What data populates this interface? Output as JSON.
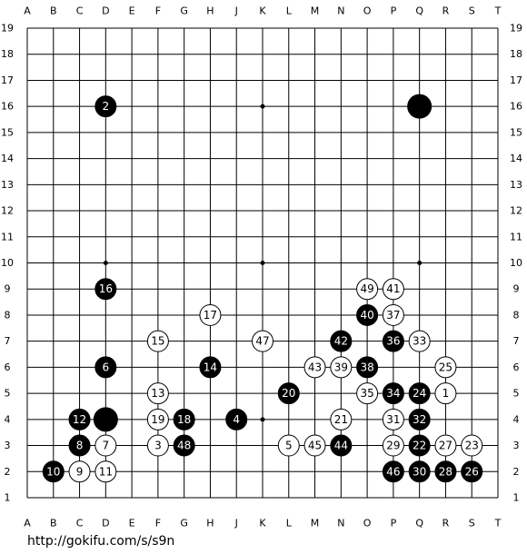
{
  "board": {
    "columns": [
      "A",
      "B",
      "C",
      "D",
      "E",
      "F",
      "G",
      "H",
      "J",
      "K",
      "L",
      "M",
      "N",
      "O",
      "P",
      "Q",
      "R",
      "S",
      "T"
    ],
    "rows": [
      19,
      18,
      17,
      16,
      15,
      14,
      13,
      12,
      11,
      10,
      9,
      8,
      7,
      6,
      5,
      4,
      3,
      2,
      1
    ],
    "star_points": [
      "D16",
      "K16",
      "Q16",
      "D10",
      "K10",
      "Q10",
      "D4",
      "K4",
      "Q4"
    ],
    "stones": [
      {
        "color": "black",
        "point": "D16",
        "move": 2
      },
      {
        "color": "black",
        "point": "Q16"
      },
      {
        "color": "black",
        "point": "D9",
        "move": 16
      },
      {
        "color": "black",
        "point": "D6",
        "move": 6
      },
      {
        "color": "black",
        "point": "H6",
        "move": 14
      },
      {
        "color": "black",
        "point": "D4"
      },
      {
        "color": "black",
        "point": "C4",
        "move": 12
      },
      {
        "color": "black",
        "point": "C3",
        "move": 8
      },
      {
        "color": "black",
        "point": "B2",
        "move": 10
      },
      {
        "color": "black",
        "point": "G4",
        "move": 18
      },
      {
        "color": "black",
        "point": "G3",
        "move": 48
      },
      {
        "color": "black",
        "point": "J4",
        "move": 4
      },
      {
        "color": "black",
        "point": "L5",
        "move": 20
      },
      {
        "color": "black",
        "point": "N7",
        "move": 42
      },
      {
        "color": "black",
        "point": "O8",
        "move": 40
      },
      {
        "color": "black",
        "point": "O6",
        "move": 38
      },
      {
        "color": "black",
        "point": "P7",
        "move": 36
      },
      {
        "color": "black",
        "point": "P5",
        "move": 34
      },
      {
        "color": "black",
        "point": "Q5",
        "move": 24
      },
      {
        "color": "black",
        "point": "Q4",
        "move": 32
      },
      {
        "color": "black",
        "point": "Q3",
        "move": 22
      },
      {
        "color": "black",
        "point": "N3",
        "move": 44
      },
      {
        "color": "black",
        "point": "P2",
        "move": 46
      },
      {
        "color": "black",
        "point": "Q2",
        "move": 30
      },
      {
        "color": "black",
        "point": "R2",
        "move": 28
      },
      {
        "color": "black",
        "point": "S2",
        "move": 26
      },
      {
        "color": "white",
        "point": "O9",
        "move": 49
      },
      {
        "color": "white",
        "point": "P9",
        "move": 41
      },
      {
        "color": "white",
        "point": "H8",
        "move": 17
      },
      {
        "color": "white",
        "point": "P8",
        "move": 37
      },
      {
        "color": "white",
        "point": "F7",
        "move": 15
      },
      {
        "color": "white",
        "point": "K7",
        "move": 47
      },
      {
        "color": "white",
        "point": "Q7",
        "move": 33
      },
      {
        "color": "white",
        "point": "M6",
        "move": 43
      },
      {
        "color": "white",
        "point": "N6",
        "move": 39
      },
      {
        "color": "white",
        "point": "R6",
        "move": 25
      },
      {
        "color": "white",
        "point": "F5",
        "move": 13
      },
      {
        "color": "white",
        "point": "O5",
        "move": 35
      },
      {
        "color": "white",
        "point": "R5",
        "move": 1
      },
      {
        "color": "white",
        "point": "F4",
        "move": 19
      },
      {
        "color": "white",
        "point": "N4",
        "move": 21
      },
      {
        "color": "white",
        "point": "P4",
        "move": 31
      },
      {
        "color": "white",
        "point": "D3",
        "move": 7
      },
      {
        "color": "white",
        "point": "F3",
        "move": 3
      },
      {
        "color": "white",
        "point": "L3",
        "move": 5
      },
      {
        "color": "white",
        "point": "M3",
        "move": 45
      },
      {
        "color": "white",
        "point": "P3",
        "move": 29
      },
      {
        "color": "white",
        "point": "R3",
        "move": 27
      },
      {
        "color": "white",
        "point": "S3",
        "move": 23
      },
      {
        "color": "white",
        "point": "C2",
        "move": 9
      },
      {
        "color": "white",
        "point": "D2",
        "move": 11
      }
    ]
  },
  "footer": {
    "url": "http://gokifu.com/s/s9n"
  }
}
